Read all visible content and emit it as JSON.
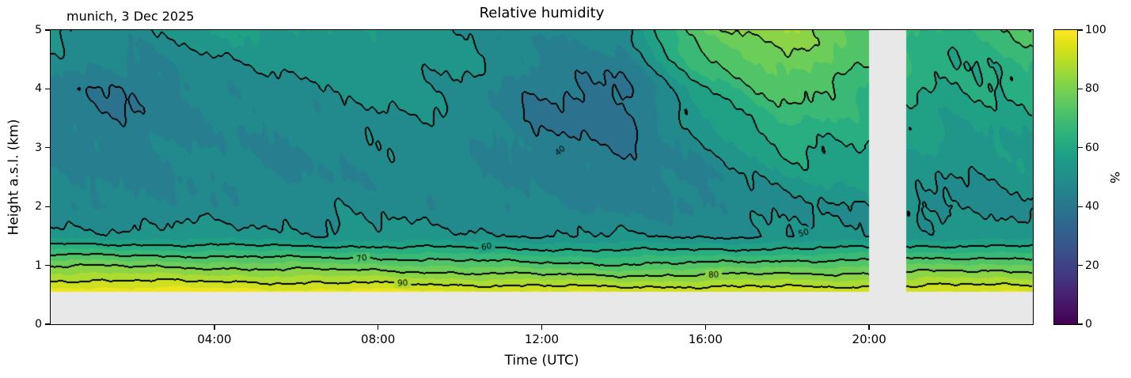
{
  "chart_data": {
    "type": "heatmap",
    "title": "Relative humidity",
    "annotation": "munich, 3 Dec 2025",
    "xlabel": "Time (UTC)",
    "ylabel": "Height a.s.l. (km)",
    "colorbar_label": "%",
    "colormap": "viridis",
    "x_range_hours": [
      0,
      24
    ],
    "y_range_km": [
      0,
      5
    ],
    "value_range": [
      0,
      100
    ],
    "x_ticks": [
      {
        "hour": 4,
        "label": "04:00"
      },
      {
        "hour": 8,
        "label": "08:00"
      },
      {
        "hour": 12,
        "label": "12:00"
      },
      {
        "hour": 16,
        "label": "16:00"
      },
      {
        "hour": 20,
        "label": "20:00"
      }
    ],
    "y_ticks": [
      {
        "km": 0,
        "label": "0"
      },
      {
        "km": 1,
        "label": "1"
      },
      {
        "km": 2,
        "label": "2"
      },
      {
        "km": 3,
        "label": "3"
      },
      {
        "km": 4,
        "label": "4"
      },
      {
        "km": 5,
        "label": "5"
      }
    ],
    "colorbar_ticks": [
      {
        "value": 0,
        "label": "0"
      },
      {
        "value": 20,
        "label": "20"
      },
      {
        "value": 40,
        "label": "40"
      },
      {
        "value": 60,
        "label": "60"
      },
      {
        "value": 80,
        "label": "80"
      },
      {
        "value": 100,
        "label": "100"
      }
    ],
    "contour_line_levels": [
      40,
      50,
      60,
      70,
      80,
      90
    ],
    "fill_level_step": 5,
    "masked_time_gap_hours": [
      20.0,
      20.9
    ],
    "masked_below_km": 0.55,
    "grid": {
      "times_hours": [
        0,
        2,
        4,
        6,
        8,
        10,
        12,
        14,
        16,
        18,
        20,
        22,
        24
      ],
      "heights_km": [
        0,
        0.5,
        1,
        1.5,
        2,
        2.5,
        3,
        3.5,
        4,
        4.5,
        5
      ],
      "humidity_percent": [
        [
          100,
          100,
          100,
          99,
          99,
          98,
          98,
          97,
          97,
          96,
          96,
          97,
          97
        ],
        [
          100,
          100,
          100,
          99,
          99,
          98,
          98,
          97,
          97,
          96,
          96,
          97,
          97
        ],
        [
          80,
          79,
          78,
          77,
          76,
          74,
          72,
          71,
          72,
          74,
          74,
          76,
          76
        ],
        [
          52,
          52,
          52,
          51,
          51,
          51,
          50,
          50,
          49,
          50,
          51,
          52,
          52
        ],
        [
          46,
          45,
          47,
          48,
          48,
          47,
          45,
          44,
          44,
          49,
          51,
          48,
          49
        ],
        [
          45,
          44,
          46,
          45,
          47,
          46,
          44,
          42,
          45,
          55,
          57,
          50,
          52
        ],
        [
          44,
          43,
          46,
          45,
          48,
          47,
          42,
          40,
          49,
          61,
          60,
          52,
          55
        ],
        [
          42,
          41,
          45,
          46,
          50,
          48,
          39,
          37,
          54,
          67,
          62,
          56,
          58
        ],
        [
          43,
          40,
          46,
          48,
          52,
          50,
          40,
          38,
          60,
          73,
          66,
          58,
          62
        ],
        [
          48,
          44,
          50,
          52,
          54,
          52,
          44,
          43,
          70,
          80,
          70,
          60,
          66
        ],
        [
          52,
          48,
          55,
          56,
          53,
          50,
          46,
          48,
          78,
          84,
          72,
          62,
          72
        ]
      ]
    },
    "contour_labels": [
      {
        "value": 40,
        "t": 12.45,
        "h": 2.95,
        "rot": -40
      },
      {
        "value": 50,
        "t": 18.4,
        "h": 1.55,
        "rot": -15
      },
      {
        "value": 60,
        "t": 10.65,
        "h": 1.32,
        "rot": -10
      },
      {
        "value": 70,
        "t": 7.6,
        "h": 1.12,
        "rot": -8
      },
      {
        "value": 80,
        "t": 16.2,
        "h": 0.84,
        "rot": -3
      },
      {
        "value": 90,
        "t": 8.6,
        "h": 0.7,
        "rot": -2
      }
    ]
  },
  "colors": {
    "page_bg": "#ffffff",
    "plot_bg": "#e8e8e8",
    "contour_line": "#000000",
    "text": "#000000"
  }
}
